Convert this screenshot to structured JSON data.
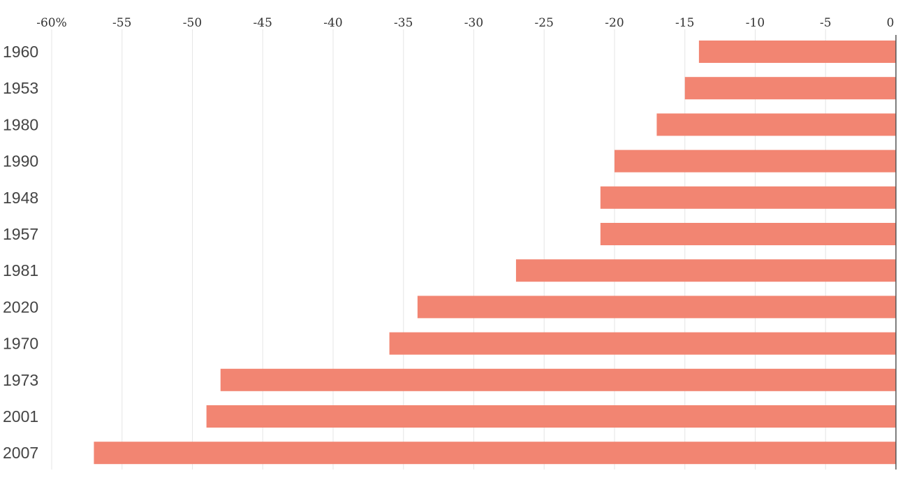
{
  "chart_data": {
    "type": "bar",
    "orientation": "horizontal",
    "categories": [
      "1960",
      "1953",
      "1980",
      "1990",
      "1948",
      "1957",
      "1981",
      "2020",
      "1970",
      "1973",
      "2001",
      "2007"
    ],
    "values": [
      -14,
      -15,
      -17,
      -20,
      -21,
      -21,
      -27,
      -34,
      -36,
      -48,
      -49,
      -57
    ],
    "x_ticks": [
      -60,
      -55,
      -50,
      -45,
      -40,
      -35,
      -30,
      -25,
      -20,
      -15,
      -10,
      -5,
      0
    ],
    "x_tick_labels": [
      "-60%",
      "-55",
      "-50",
      "-45",
      "-40",
      "-35",
      "-30",
      "-25",
      "-20",
      "-15",
      "-10",
      "-5",
      "0"
    ],
    "xlim": [
      -60,
      0
    ],
    "x_axis_position": "top",
    "grid": true,
    "bar_color": "#f28572",
    "title": "",
    "xlabel": "",
    "ylabel": ""
  }
}
